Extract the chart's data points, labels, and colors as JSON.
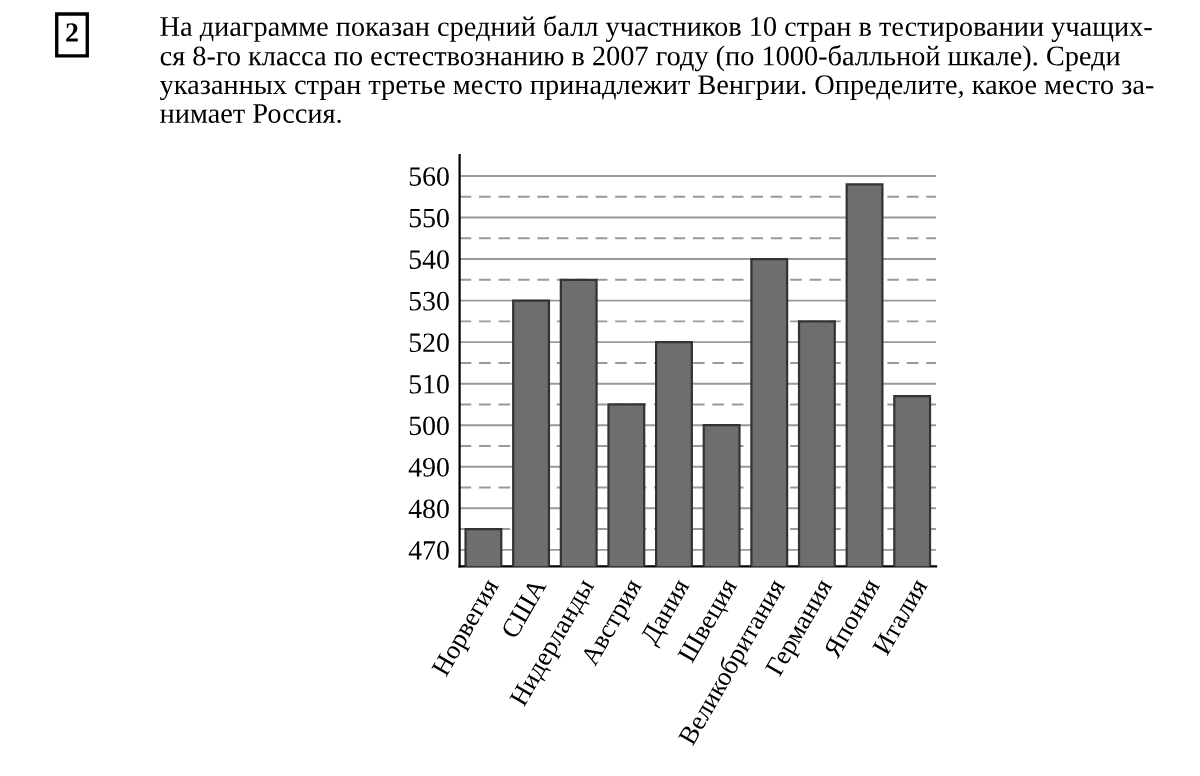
{
  "chart_data": {
    "type": "bar",
    "title": "На диаграмме показан средний балл участников 10 стран в тестировании учащих-\nся 8-го класса по естествознанию в 2007 году (по 1000-балльной шкале). Среди\nуказанных стран третье место принадлежит Венгрии. Определите, какое место за-\nнимает Россия.",
    "annotations": [
      "2"
    ],
    "categories": [
      "Норвегия",
      "США",
      "Нидерланды",
      "Австрия",
      "Дания",
      "Швеция",
      "Великобритания",
      "Германия",
      "Япония",
      "Италия"
    ],
    "values": [
      475,
      530,
      535,
      505,
      520,
      500,
      540,
      525,
      558,
      507
    ],
    "color": "#6e6e6e",
    "ylim": [
      466,
      565
    ],
    "yticks": [
      470,
      {
        "value": 475,
        "label": null
      },
      480,
      {
        "value": 485,
        "label": null
      },
      490,
      {
        "value": 495,
        "label": null
      },
      500,
      {
        "value": 505,
        "label": null
      },
      510,
      {
        "value": 515,
        "label": null
      },
      520,
      {
        "value": 525,
        "label": null
      },
      530,
      {
        "value": 535,
        "label": null
      },
      540,
      {
        "value": 545,
        "label": null
      },
      550,
      {
        "value": 555,
        "label": null
      },
      560
    ],
    "grid": "y"
  }
}
